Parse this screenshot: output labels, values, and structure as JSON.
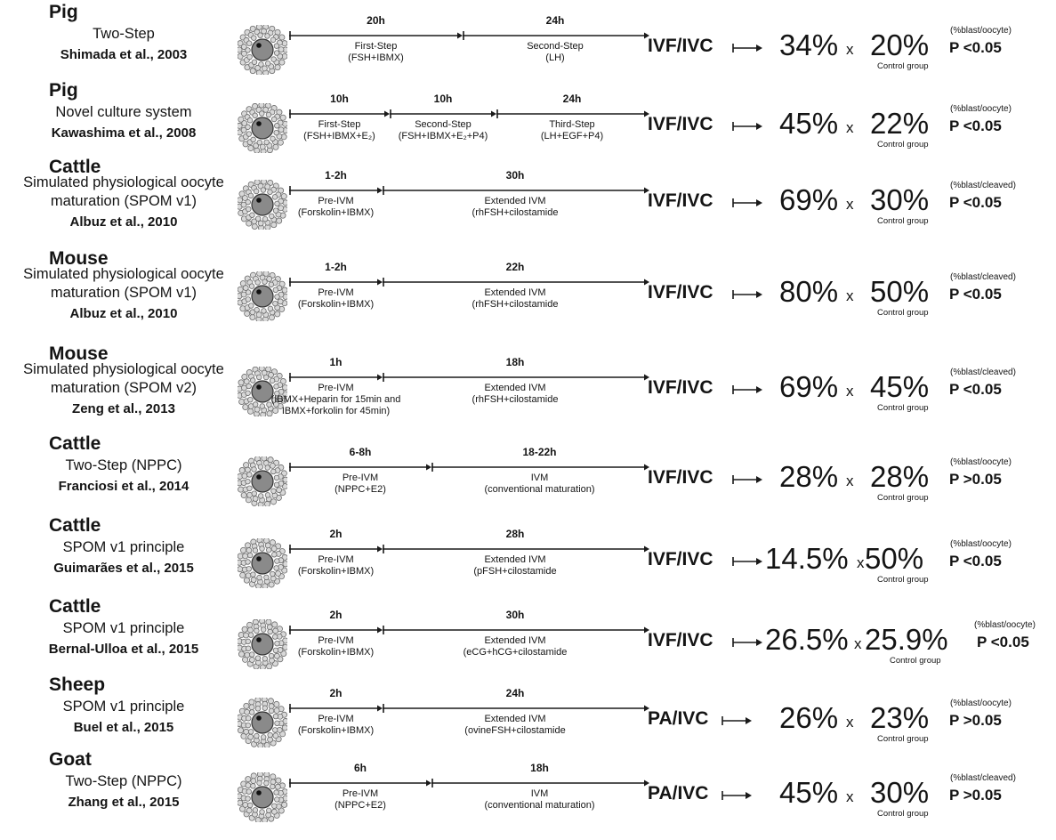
{
  "studies": [
    {
      "species": "Pig",
      "method_lines": [
        "Two-Step"
      ],
      "reference": "Shimada et al., 2003",
      "stages": [
        {
          "duration": "20h",
          "name": "First-Step",
          "detail": "(FSH+IBMX)"
        },
        {
          "duration": "24h",
          "name": "Second-Step",
          "detail": "(LH)"
        }
      ],
      "assay": "IVF/IVC",
      "treatment_value": "34%",
      "control_value": "20%",
      "control_label": "Control group",
      "metric": "(%blast/oocyte)",
      "p_value": "P <0.05"
    },
    {
      "species": "Pig",
      "method_lines": [
        "Novel culture system"
      ],
      "reference": "Kawashima et al., 2008",
      "stages": [
        {
          "duration": "10h",
          "name": "First-Step",
          "detail": "(FSH+IBMX+E₂)"
        },
        {
          "duration": "10h",
          "name": "Second-Step",
          "detail": "(FSH+IBMX+E₂+P4)"
        },
        {
          "duration": "24h",
          "name": "Third-Step",
          "detail": "(LH+EGF+P4)"
        }
      ],
      "assay": "IVF/IVC",
      "treatment_value": "45%",
      "control_value": "22%",
      "control_label": "Control group",
      "metric": "(%blast/oocyte)",
      "p_value": "P <0.05"
    },
    {
      "species": "Cattle",
      "method_lines": [
        "Simulated physiological oocyte",
        "maturation (SPOM v1)"
      ],
      "reference": "Albuz et al., 2010",
      "stages": [
        {
          "duration": "1-2h",
          "name": "Pre-IVM",
          "detail": "(Forskolin+IBMX)"
        },
        {
          "duration": "30h",
          "name": "Extended IVM",
          "detail": "(rhFSH+cilostamide"
        }
      ],
      "assay": "IVF/IVC",
      "treatment_value": "69%",
      "control_value": "30%",
      "control_label": "Control group",
      "metric": "(%blast/cleaved)",
      "p_value": "P <0.05"
    },
    {
      "species": "Mouse",
      "method_lines": [
        "Simulated physiological oocyte",
        "maturation (SPOM v1)"
      ],
      "reference": "Albuz et al., 2010",
      "stages": [
        {
          "duration": "1-2h",
          "name": "Pre-IVM",
          "detail": "(Forskolin+IBMX)"
        },
        {
          "duration": "22h",
          "name": "Extended IVM",
          "detail": "(rhFSH+cilostamide"
        }
      ],
      "assay": "IVF/IVC",
      "treatment_value": "80%",
      "control_value": "50%",
      "control_label": "Control group",
      "metric": "(%blast/cleaved)",
      "p_value": "P <0.05"
    },
    {
      "species": "Mouse",
      "method_lines": [
        "Simulated physiological oocyte",
        "maturation (SPOM v2)"
      ],
      "reference": "Zeng et al., 2013",
      "stages": [
        {
          "duration": "1h",
          "name": "Pre-IVM",
          "detail": "(IBMX+Heparin for 15min and",
          "detail2": "IBMX+forkolin for 45min)"
        },
        {
          "duration": "18h",
          "name": "Extended IVM",
          "detail": "(rhFSH+cilostamide"
        }
      ],
      "assay": "IVF/IVC",
      "treatment_value": "69%",
      "control_value": "45%",
      "control_label": "Control group",
      "metric": "(%blast/cleaved)",
      "p_value": "P <0.05"
    },
    {
      "species": "Cattle",
      "method_lines": [
        "Two-Step (NPPC)"
      ],
      "reference": "Franciosi et al., 2014",
      "stages": [
        {
          "duration": "6-8h",
          "name": "Pre-IVM",
          "detail": "(NPPC+E2)"
        },
        {
          "duration": "18-22h",
          "name": "IVM",
          "detail": "(conventional maturation)"
        }
      ],
      "assay": "IVF/IVC",
      "treatment_value": "28%",
      "control_value": "28%",
      "control_label": "Control group",
      "metric": "(%blast/oocyte)",
      "p_value": "P >0.05"
    },
    {
      "species": "Cattle",
      "method_lines": [
        "SPOM v1 principle"
      ],
      "reference": "Guimarães et al., 2015",
      "stages": [
        {
          "duration": "2h",
          "name": "Pre-IVM",
          "detail": "(Forskolin+IBMX)"
        },
        {
          "duration": "28h",
          "name": "Extended IVM",
          "detail": "(pFSH+cilostamide"
        }
      ],
      "assay": "IVF/IVC",
      "treatment_value": "14.5%",
      "control_value": "50%",
      "control_label": "Control group",
      "metric": "(%blast/oocyte)",
      "p_value": "P <0.05"
    },
    {
      "species": "Cattle",
      "method_lines": [
        "SPOM v1 principle"
      ],
      "reference": "Bernal-Ulloa et al., 2015",
      "stages": [
        {
          "duration": "2h",
          "name": "Pre-IVM",
          "detail": "(Forskolin+IBMX)"
        },
        {
          "duration": "30h",
          "name": "Extended IVM",
          "detail": "(eCG+hCG+cilostamide"
        }
      ],
      "assay": "IVF/IVC",
      "treatment_value": "26.5%",
      "control_value": "25.9%",
      "control_label": "Control group",
      "metric": "(%blast/oocyte)",
      "p_value": "P <0.05"
    },
    {
      "species": "Sheep",
      "method_lines": [
        "SPOM v1 principle"
      ],
      "reference": "Buel et al., 2015",
      "stages": [
        {
          "duration": "2h",
          "name": "Pre-IVM",
          "detail": "(Forskolin+IBMX)"
        },
        {
          "duration": "24h",
          "name": "Extended IVM",
          "detail": "(ovineFSH+cilostamide"
        }
      ],
      "assay": "PA/IVC",
      "treatment_value": "26%",
      "control_value": "23%",
      "control_label": "Control group",
      "metric": "(%blast/oocyte)",
      "p_value": "P >0.05"
    },
    {
      "species": "Goat",
      "method_lines": [
        "Two-Step (NPPC)"
      ],
      "reference": "Zhang et al., 2015",
      "stages": [
        {
          "duration": "6h",
          "name": "Pre-IVM",
          "detail": "(NPPC+E2)"
        },
        {
          "duration": "18h",
          "name": "IVM",
          "detail": "(conventional maturation)"
        }
      ],
      "assay": "PA/IVC",
      "treatment_value": "45%",
      "control_value": "30%",
      "control_label": "Control group",
      "metric": "(%blast/cleaved)",
      "p_value": "P >0.05"
    }
  ],
  "separator": "x"
}
